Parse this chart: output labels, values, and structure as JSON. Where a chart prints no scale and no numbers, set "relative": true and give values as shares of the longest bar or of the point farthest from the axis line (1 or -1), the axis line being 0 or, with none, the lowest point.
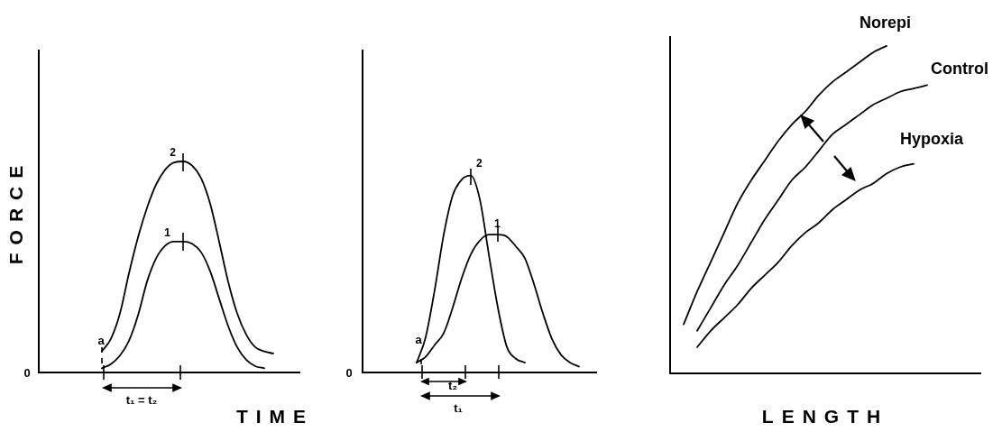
{
  "chart_data": [
    {
      "type": "line",
      "relative": true,
      "ylabel": "FORCE",
      "xlabel": "TIME",
      "categories": [
        null,
        null,
        null,
        null,
        null,
        null,
        null,
        null,
        null,
        null,
        null,
        null,
        null,
        null,
        null,
        null,
        null,
        null,
        null,
        null,
        null,
        null,
        null,
        null,
        null,
        null,
        null,
        null,
        null,
        null
      ],
      "series": [
        {
          "name": "2",
          "color": "#000000",
          "values": [
            null,
            null,
            null,
            null,
            null,
            null,
            null,
            0.1,
            0.16,
            0.28,
            0.47,
            0.64,
            0.78,
            0.89,
            0.96,
            0.995,
            1.0,
            0.98,
            0.92,
            0.8,
            0.62,
            0.43,
            0.28,
            0.18,
            0.12,
            0.1,
            0.09,
            null,
            null,
            null
          ]
        },
        {
          "name": "1",
          "color": "#000000",
          "values": [
            null,
            null,
            null,
            null,
            null,
            null,
            null,
            0.02,
            0.04,
            0.08,
            0.15,
            0.27,
            0.43,
            0.54,
            0.6,
            0.62,
            0.62,
            0.61,
            0.57,
            0.48,
            0.35,
            0.22,
            0.12,
            0.06,
            0.03,
            0.02,
            null,
            null,
            null,
            null
          ]
        }
      ],
      "annotations": [
        "0",
        "a",
        "t₁ = t₂"
      ]
    },
    {
      "type": "line",
      "relative": true,
      "categories": [
        null,
        null,
        null,
        null,
        null,
        null,
        null,
        null,
        null,
        null,
        null,
        null,
        null,
        null,
        null,
        null,
        null,
        null,
        null,
        null,
        null,
        null,
        null,
        null,
        null,
        null,
        null
      ],
      "series": [
        {
          "name": "2",
          "color": "#000000",
          "values": [
            null,
            null,
            null,
            null,
            null,
            null,
            0.05,
            0.18,
            0.42,
            0.7,
            0.9,
            0.98,
            1.0,
            0.88,
            0.6,
            0.33,
            0.13,
            0.07,
            0.05,
            null,
            null,
            null,
            null,
            null,
            null,
            null,
            null
          ]
        },
        {
          "name": "1",
          "color": "#000000",
          "values": [
            null,
            null,
            null,
            null,
            null,
            null,
            0.05,
            0.08,
            0.14,
            0.2,
            0.33,
            0.48,
            0.6,
            0.67,
            0.7,
            0.7,
            0.69,
            0.64,
            0.58,
            0.45,
            0.3,
            0.17,
            0.09,
            0.05,
            0.03,
            null,
            null
          ]
        }
      ],
      "annotations": [
        "0",
        "a",
        "t₂",
        "t₁"
      ]
    },
    {
      "type": "line",
      "relative": true,
      "xlabel": "LENGTH",
      "categories": [
        null,
        null,
        null,
        null,
        null,
        null,
        null,
        null,
        null,
        null,
        null,
        null,
        null,
        null,
        null,
        null,
        null,
        null,
        null,
        null,
        null,
        null,
        null,
        null
      ],
      "series": [
        {
          "name": "Norepi",
          "color": "#000000",
          "values": [
            null,
            0.15,
            0.25,
            0.34,
            0.43,
            0.52,
            0.59,
            0.65,
            0.71,
            0.76,
            0.8,
            0.85,
            0.89,
            0.92,
            0.95,
            0.98,
            1.0,
            null,
            null,
            null,
            null,
            null,
            null,
            null
          ]
        },
        {
          "name": "Control",
          "color": "#000000",
          "values": [
            null,
            null,
            0.13,
            0.2,
            0.27,
            0.33,
            0.4,
            0.47,
            0.53,
            0.59,
            0.63,
            0.68,
            0.73,
            0.76,
            0.79,
            0.82,
            0.84,
            0.86,
            0.87,
            0.88,
            null,
            null,
            null,
            null
          ]
        },
        {
          "name": "Hypoxia",
          "color": "#000000",
          "values": [
            null,
            null,
            0.08,
            0.13,
            0.17,
            0.21,
            0.26,
            0.3,
            0.34,
            0.39,
            0.43,
            0.46,
            0.5,
            0.53,
            0.56,
            0.58,
            0.61,
            0.63,
            0.64,
            null,
            null,
            null,
            null,
            null
          ]
        }
      ]
    }
  ]
}
